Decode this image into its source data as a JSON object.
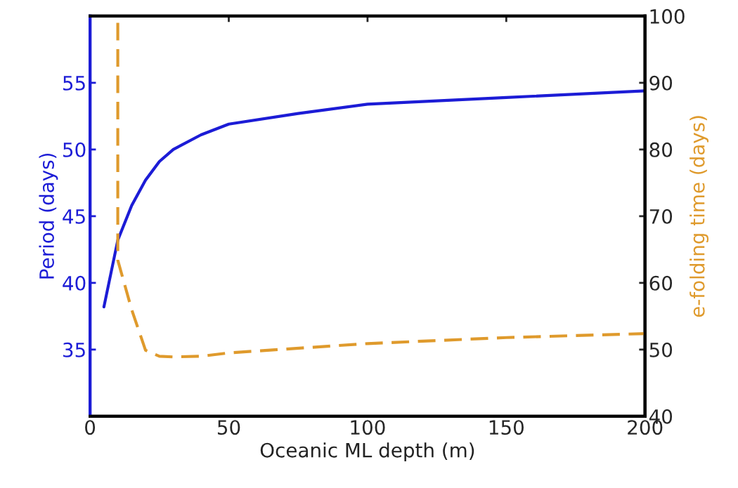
{
  "chart_data": {
    "type": "line",
    "xlabel": "Oceanic ML depth (m)",
    "ylabel": "Period (days)",
    "y2label": "e-folding time (days)",
    "xlim": [
      0,
      200
    ],
    "xticks": [
      0,
      50,
      100,
      150,
      200
    ],
    "ylim": [
      30,
      60
    ],
    "yticks": [
      35,
      40,
      45,
      50,
      55
    ],
    "y2lim": [
      40,
      100
    ],
    "y2ticks": [
      40,
      50,
      60,
      70,
      80,
      90,
      100
    ],
    "grid": false,
    "legend": false,
    "series": [
      {
        "color": "#1c1cd6",
        "line_style": "solid",
        "x": [
          5,
          10,
          15,
          20,
          25,
          30,
          40,
          50,
          75,
          100,
          150,
          200
        ],
        "values": [
          38.2,
          43.2,
          45.8,
          47.7,
          49.1,
          50.0,
          51.1,
          51.9,
          52.7,
          53.4,
          53.9,
          54.4
        ]
      },
      {
        "color": "#df9a2c",
        "line_style": "dashed",
        "axis": "y2",
        "x": [
          10,
          10,
          15,
          20,
          25,
          30,
          40,
          50,
          100,
          150,
          200
        ],
        "values": [
          99,
          63.4,
          56,
          49.9,
          49.0,
          48.9,
          49.0,
          49.5,
          50.9,
          51.8,
          52.4
        ]
      }
    ]
  }
}
